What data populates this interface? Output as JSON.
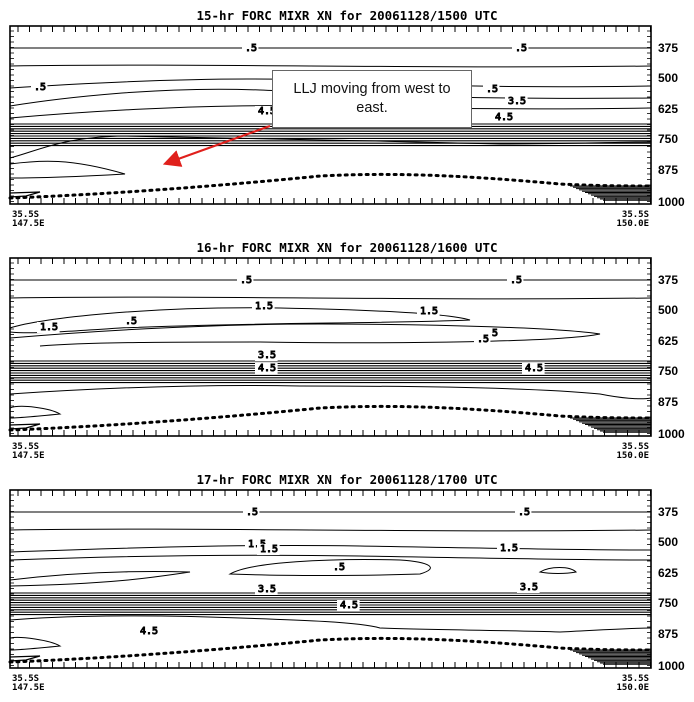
{
  "chart_data": [
    {
      "type": "contour",
      "title": "15-hr FORC MIXR XN for 20061128/1500 UTC",
      "y_axis": {
        "ticks": [
          "375",
          "500",
          "625",
          "750",
          "875",
          "1000"
        ],
        "reversed": true
      },
      "x_axis": {
        "start_label": [
          "35.5S",
          "147.5E"
        ],
        "end_label": [
          "35.5S",
          "150.0E"
        ]
      },
      "contour_labels": [
        ".5",
        ".5",
        ".5",
        ".5",
        "3.5",
        "4.5",
        "4.5"
      ]
    },
    {
      "type": "contour",
      "title": "16-hr FORC MIXR XN for 20061128/1600 UTC",
      "y_axis": {
        "ticks": [
          "375",
          "500",
          "625",
          "750",
          "875",
          "1000"
        ],
        "reversed": true
      },
      "x_axis": {
        "start_label": [
          "35.5S",
          "147.5E"
        ],
        "end_label": [
          "35.5S",
          "150.0E"
        ]
      },
      "contour_labels": [
        ".5",
        ".5",
        "1.5",
        "1.5",
        "1.5",
        ".5",
        ".5",
        ".5",
        "3.5",
        "4.5",
        "4.5"
      ]
    },
    {
      "type": "contour",
      "title": "17-hr FORC MIXR XN for 20061128/1700 UTC",
      "y_axis": {
        "ticks": [
          "375",
          "500",
          "625",
          "750",
          "875",
          "1000"
        ],
        "reversed": true
      },
      "x_axis": {
        "start_label": [
          "35.5S",
          "147.5E"
        ],
        "end_label": [
          "35.5S",
          "150.0E"
        ]
      },
      "contour_labels": [
        ".5",
        ".5",
        "1.5",
        "1.5",
        "1.5",
        ".5",
        "3.5",
        "3.5",
        "4.5",
        "4.5"
      ]
    }
  ],
  "annotation": {
    "text": "LLJ moving from west to east.",
    "arrow_color": "#e0201c"
  }
}
